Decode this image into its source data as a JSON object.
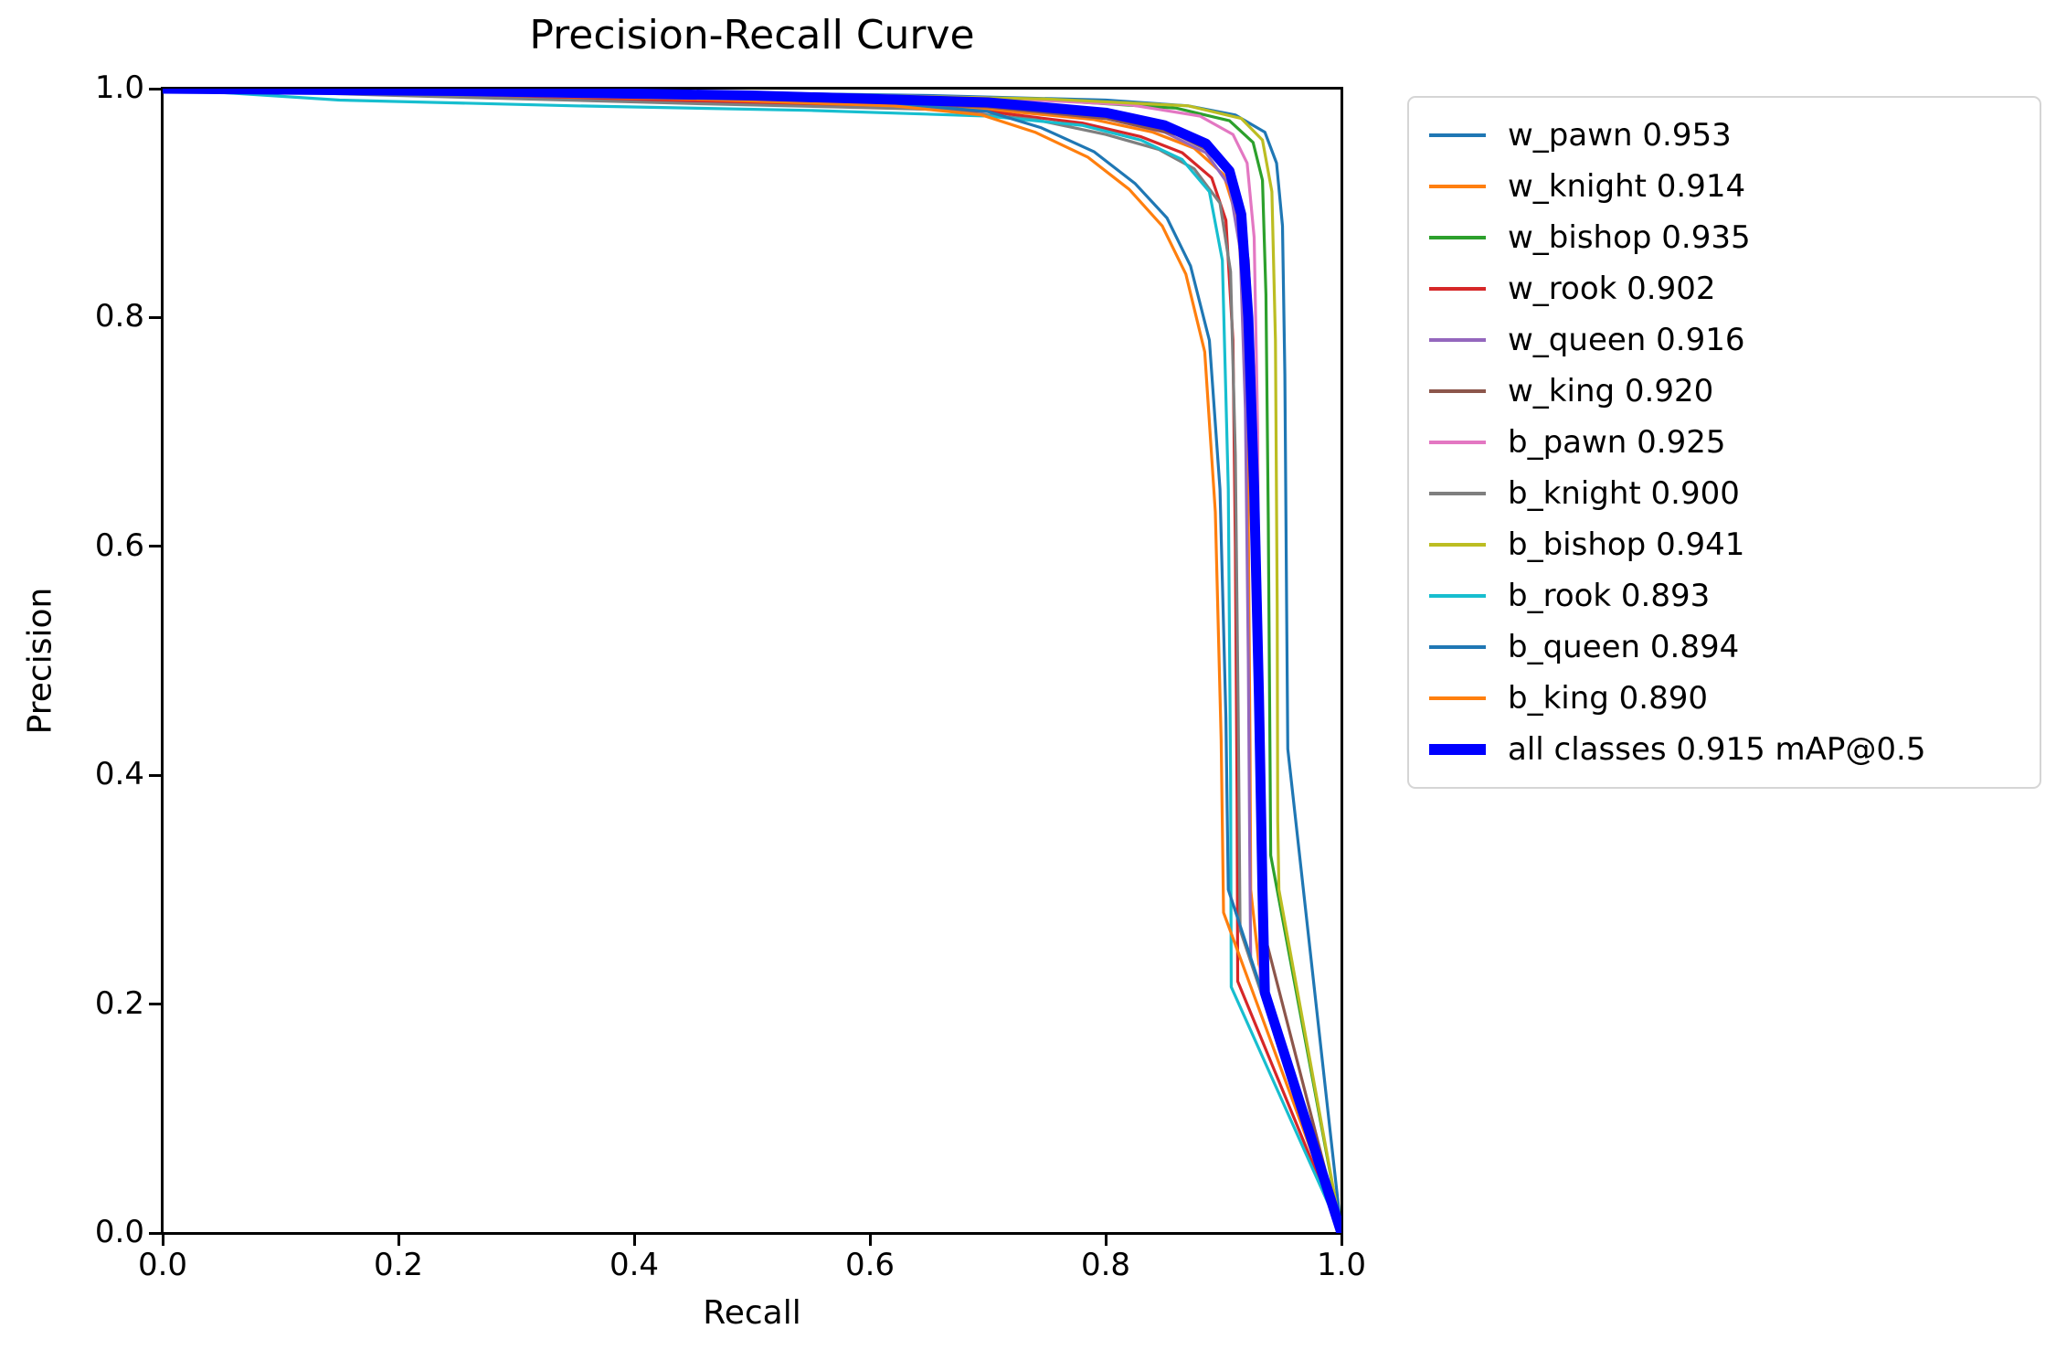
{
  "chart_data": {
    "type": "line",
    "title": "Precision-Recall Curve",
    "xlabel": "Recall",
    "ylabel": "Precision",
    "xlim": [
      0.0,
      1.0
    ],
    "ylim": [
      0.0,
      1.0
    ],
    "x_ticks": [
      "0.0",
      "0.2",
      "0.4",
      "0.6",
      "0.8",
      "1.0"
    ],
    "y_ticks": [
      "0.0",
      "0.2",
      "0.4",
      "0.6",
      "0.8",
      "1.0"
    ],
    "grid": false,
    "legend_position": "outside right",
    "background": "#ffffff",
    "spine_color": "#000000",
    "series": [
      {
        "name": "w_pawn",
        "label": "w_pawn 0.953",
        "ap": 0.953,
        "color": "#1f77b4",
        "line_width": 3.2,
        "points": [
          [
            0,
            1.0
          ],
          [
            0.2,
            0.999
          ],
          [
            0.45,
            0.997
          ],
          [
            0.65,
            0.994
          ],
          [
            0.8,
            0.99
          ],
          [
            0.87,
            0.985
          ],
          [
            0.91,
            0.977
          ],
          [
            0.935,
            0.962
          ],
          [
            0.945,
            0.935
          ],
          [
            0.95,
            0.88
          ],
          [
            0.952,
            0.75
          ],
          [
            0.9535,
            0.55
          ],
          [
            0.9545,
            0.423
          ],
          [
            1.0,
            0.0
          ]
        ]
      },
      {
        "name": "w_knight",
        "label": "w_knight 0.914",
        "ap": 0.914,
        "color": "#ff7f0e",
        "line_width": 3.2,
        "points": [
          [
            0,
            1.0
          ],
          [
            0.2,
            0.996
          ],
          [
            0.5,
            0.989
          ],
          [
            0.7,
            0.982
          ],
          [
            0.79,
            0.973
          ],
          [
            0.84,
            0.962
          ],
          [
            0.875,
            0.948
          ],
          [
            0.9,
            0.925
          ],
          [
            0.912,
            0.885
          ],
          [
            0.918,
            0.8
          ],
          [
            0.921,
            0.62
          ],
          [
            0.9225,
            0.42
          ],
          [
            0.923,
            0.3
          ],
          [
            0.93,
            0.235
          ],
          [
            1.0,
            0.0
          ]
        ]
      },
      {
        "name": "w_bishop",
        "label": "w_bishop 0.935",
        "ap": 0.935,
        "color": "#2ca02c",
        "line_width": 3.2,
        "points": [
          [
            0,
            1.0
          ],
          [
            0.25,
            0.998
          ],
          [
            0.55,
            0.994
          ],
          [
            0.75,
            0.99
          ],
          [
            0.86,
            0.983
          ],
          [
            0.905,
            0.972
          ],
          [
            0.925,
            0.953
          ],
          [
            0.933,
            0.92
          ],
          [
            0.936,
            0.82
          ],
          [
            0.938,
            0.62
          ],
          [
            0.9395,
            0.4
          ],
          [
            0.94,
            0.33
          ],
          [
            1.0,
            0.0
          ]
        ]
      },
      {
        "name": "w_rook",
        "label": "w_rook 0.902",
        "ap": 0.902,
        "color": "#d62728",
        "line_width": 3.2,
        "points": [
          [
            0,
            1.0
          ],
          [
            0.2,
            0.995
          ],
          [
            0.5,
            0.988
          ],
          [
            0.7,
            0.98
          ],
          [
            0.78,
            0.97
          ],
          [
            0.83,
            0.958
          ],
          [
            0.865,
            0.944
          ],
          [
            0.89,
            0.922
          ],
          [
            0.902,
            0.885
          ],
          [
            0.908,
            0.78
          ],
          [
            0.91,
            0.6
          ],
          [
            0.9115,
            0.38
          ],
          [
            0.912,
            0.22
          ],
          [
            1.0,
            0.0
          ]
        ]
      },
      {
        "name": "w_queen",
        "label": "w_queen 0.916",
        "ap": 0.916,
        "color": "#9467bd",
        "line_width": 3.2,
        "points": [
          [
            0,
            1.0
          ],
          [
            0.2,
            0.997
          ],
          [
            0.5,
            0.991
          ],
          [
            0.7,
            0.984
          ],
          [
            0.8,
            0.974
          ],
          [
            0.85,
            0.962
          ],
          [
            0.885,
            0.944
          ],
          [
            0.905,
            0.915
          ],
          [
            0.914,
            0.86
          ],
          [
            0.9185,
            0.72
          ],
          [
            0.921,
            0.5
          ],
          [
            0.9225,
            0.3
          ],
          [
            0.923,
            0.24
          ],
          [
            1.0,
            0.0
          ]
        ]
      },
      {
        "name": "w_king",
        "label": "w_king 0.920",
        "ap": 0.92,
        "color": "#8c564b",
        "line_width": 3.2,
        "points": [
          [
            0,
            1.0
          ],
          [
            0.2,
            0.997
          ],
          [
            0.5,
            0.991
          ],
          [
            0.7,
            0.984
          ],
          [
            0.8,
            0.974
          ],
          [
            0.86,
            0.96
          ],
          [
            0.895,
            0.942
          ],
          [
            0.912,
            0.91
          ],
          [
            0.921,
            0.85
          ],
          [
            0.927,
            0.72
          ],
          [
            0.931,
            0.55
          ],
          [
            0.9335,
            0.38
          ],
          [
            0.935,
            0.26
          ],
          [
            1.0,
            0.0
          ]
        ]
      },
      {
        "name": "b_pawn",
        "label": "b_pawn 0.925",
        "ap": 0.925,
        "color": "#e377c2",
        "line_width": 3.2,
        "points": [
          [
            0,
            1.0
          ],
          [
            0.25,
            0.999
          ],
          [
            0.5,
            0.996
          ],
          [
            0.7,
            0.992
          ],
          [
            0.82,
            0.986
          ],
          [
            0.88,
            0.976
          ],
          [
            0.908,
            0.96
          ],
          [
            0.92,
            0.935
          ],
          [
            0.926,
            0.87
          ],
          [
            0.929,
            0.7
          ],
          [
            0.93,
            0.48
          ],
          [
            0.9305,
            0.28
          ],
          [
            0.931,
            0.22
          ],
          [
            1.0,
            0.0
          ]
        ]
      },
      {
        "name": "b_knight",
        "label": "b_knight 0.900",
        "ap": 0.9,
        "color": "#7f7f7f",
        "line_width": 3.2,
        "points": [
          [
            0,
            1.0
          ],
          [
            0.2,
            0.994
          ],
          [
            0.45,
            0.987
          ],
          [
            0.65,
            0.982
          ],
          [
            0.74,
            0.973
          ],
          [
            0.8,
            0.96
          ],
          [
            0.845,
            0.947
          ],
          [
            0.875,
            0.93
          ],
          [
            0.897,
            0.9
          ],
          [
            0.906,
            0.84
          ],
          [
            0.91,
            0.68
          ],
          [
            0.9125,
            0.45
          ],
          [
            0.914,
            0.265
          ],
          [
            1.0,
            0.0
          ]
        ]
      },
      {
        "name": "b_bishop",
        "label": "b_bishop 0.941",
        "ap": 0.941,
        "color": "#bcbd22",
        "line_width": 3.2,
        "points": [
          [
            0,
            1.0
          ],
          [
            0.25,
            0.999
          ],
          [
            0.55,
            0.995
          ],
          [
            0.75,
            0.991
          ],
          [
            0.87,
            0.985
          ],
          [
            0.915,
            0.974
          ],
          [
            0.933,
            0.955
          ],
          [
            0.941,
            0.91
          ],
          [
            0.944,
            0.78
          ],
          [
            0.9455,
            0.55
          ],
          [
            0.946,
            0.36
          ],
          [
            0.947,
            0.3
          ],
          [
            1.0,
            0.0
          ]
        ]
      },
      {
        "name": "b_rook",
        "label": "b_rook 0.893",
        "ap": 0.893,
        "color": "#17becf",
        "line_width": 3.2,
        "points": [
          [
            0,
            1.0
          ],
          [
            0.15,
            0.99
          ],
          [
            0.35,
            0.985
          ],
          [
            0.55,
            0.981
          ],
          [
            0.7,
            0.976
          ],
          [
            0.78,
            0.968
          ],
          [
            0.83,
            0.955
          ],
          [
            0.865,
            0.938
          ],
          [
            0.888,
            0.91
          ],
          [
            0.899,
            0.85
          ],
          [
            0.904,
            0.65
          ],
          [
            0.906,
            0.4
          ],
          [
            0.9065,
            0.215
          ],
          [
            1.0,
            0.0
          ]
        ]
      },
      {
        "name": "b_queen",
        "label": "b_queen 0.894",
        "ap": 0.894,
        "color": "#1f77b4",
        "line_width": 3.2,
        "points": [
          [
            0,
            1.0
          ],
          [
            0.2,
            0.997
          ],
          [
            0.45,
            0.992
          ],
          [
            0.62,
            0.987
          ],
          [
            0.7,
            0.98
          ],
          [
            0.745,
            0.966
          ],
          [
            0.79,
            0.945
          ],
          [
            0.825,
            0.917
          ],
          [
            0.852,
            0.887
          ],
          [
            0.872,
            0.845
          ],
          [
            0.888,
            0.78
          ],
          [
            0.897,
            0.65
          ],
          [
            0.902,
            0.45
          ],
          [
            0.904,
            0.3
          ],
          [
            1.0,
            0.0
          ]
        ]
      },
      {
        "name": "b_king",
        "label": "b_king 0.890",
        "ap": 0.89,
        "color": "#ff7f0e",
        "line_width": 3.2,
        "points": [
          [
            0,
            1.0
          ],
          [
            0.2,
            0.996
          ],
          [
            0.45,
            0.991
          ],
          [
            0.62,
            0.985
          ],
          [
            0.695,
            0.977
          ],
          [
            0.74,
            0.962
          ],
          [
            0.785,
            0.94
          ],
          [
            0.82,
            0.912
          ],
          [
            0.848,
            0.88
          ],
          [
            0.868,
            0.838
          ],
          [
            0.884,
            0.77
          ],
          [
            0.893,
            0.63
          ],
          [
            0.898,
            0.43
          ],
          [
            0.9,
            0.28
          ],
          [
            1.0,
            0.0
          ]
        ]
      },
      {
        "name": "all_classes",
        "label": "all classes 0.915 mAP@0.5",
        "ap": 0.915,
        "color": "#0000ff",
        "line_width": 11,
        "points": [
          [
            0,
            1.0
          ],
          [
            0.25,
            0.998
          ],
          [
            0.5,
            0.994
          ],
          [
            0.7,
            0.988
          ],
          [
            0.8,
            0.979
          ],
          [
            0.85,
            0.968
          ],
          [
            0.885,
            0.952
          ],
          [
            0.905,
            0.928
          ],
          [
            0.915,
            0.89
          ],
          [
            0.921,
            0.8
          ],
          [
            0.926,
            0.65
          ],
          [
            0.93,
            0.47
          ],
          [
            0.933,
            0.3
          ],
          [
            0.935,
            0.21
          ],
          [
            1.0,
            0.0
          ]
        ]
      }
    ]
  }
}
